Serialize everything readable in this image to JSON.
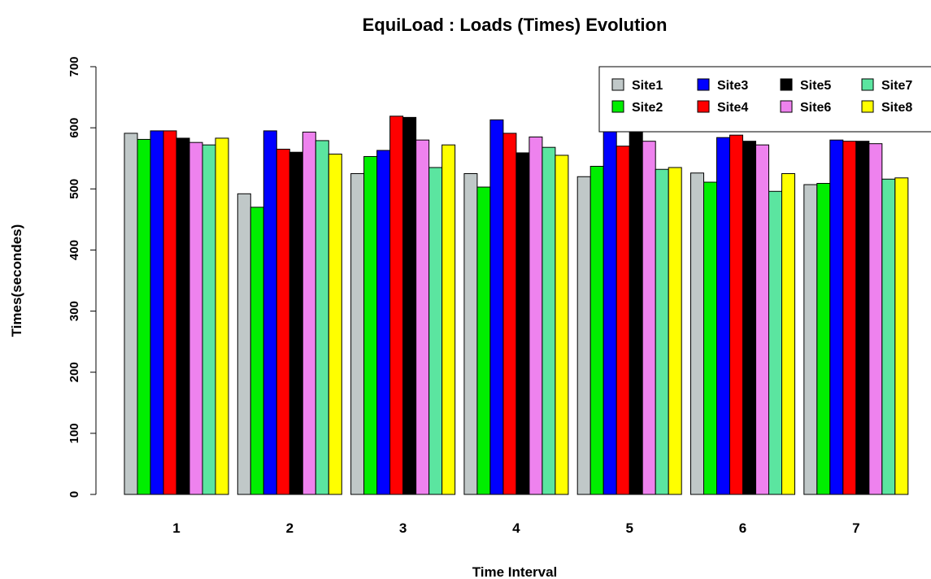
{
  "chart_data": {
    "type": "bar",
    "title": "EquiLoad : Loads (Times) Evolution",
    "xlabel": "Time Interval",
    "ylabel": "Times(secondes)",
    "ylim": [
      0,
      700
    ],
    "yticks": [
      "0",
      "100",
      "200",
      "300",
      "400",
      "500",
      "600",
      "700"
    ],
    "grid": false,
    "legend_position": "top-right",
    "categories": [
      "1",
      "2",
      "3",
      "4",
      "5",
      "6",
      "7"
    ],
    "series": [
      {
        "name": "Site1",
        "color": "#c0c8c8",
        "values": [
          591,
          492,
          525,
          525,
          520,
          526,
          507
        ]
      },
      {
        "name": "Site2",
        "color": "#00ee00",
        "values": [
          581,
          470,
          553,
          503,
          537,
          511,
          509
        ]
      },
      {
        "name": "Site3",
        "color": "#0000ff",
        "values": [
          595,
          595,
          563,
          613,
          595,
          584,
          580
        ]
      },
      {
        "name": "Site4",
        "color": "#ff0000",
        "values": [
          595,
          565,
          619,
          591,
          570,
          588,
          578
        ]
      },
      {
        "name": "Site5",
        "color": "#000000",
        "values": [
          583,
          560,
          617,
          559,
          606,
          578,
          578
        ]
      },
      {
        "name": "Site6",
        "color": "#ee82ee",
        "values": [
          576,
          593,
          580,
          585,
          578,
          572,
          574
        ]
      },
      {
        "name": "Site7",
        "color": "#5be5a0",
        "values": [
          572,
          579,
          535,
          568,
          532,
          496,
          516
        ]
      },
      {
        "name": "Site8",
        "color": "#ffff00",
        "values": [
          583,
          557,
          572,
          555,
          535,
          525,
          518
        ]
      }
    ]
  }
}
